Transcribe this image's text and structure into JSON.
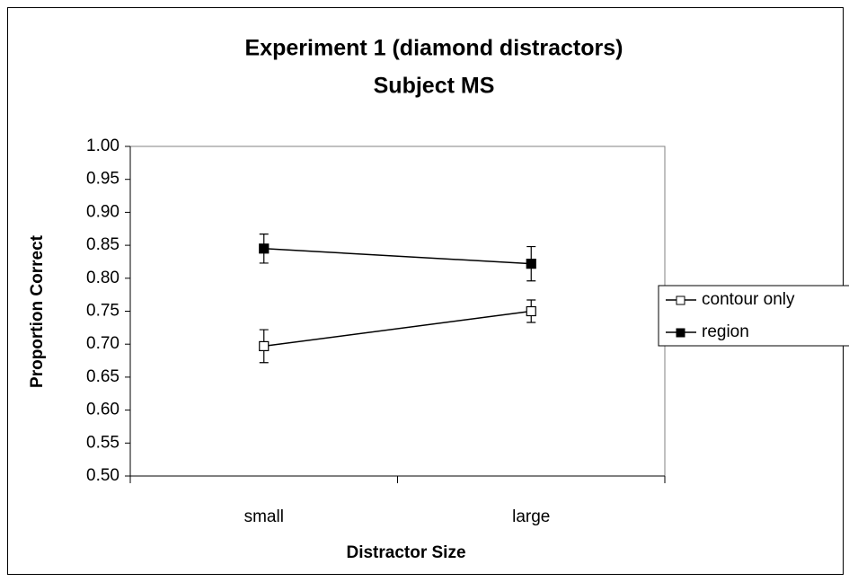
{
  "chart_data": {
    "type": "line",
    "title": "Experiment 1 (diamond distractors)",
    "subtitle": "Subject MS",
    "xlabel": "Distractor Size",
    "ylabel": "Proportion Correct",
    "categories": [
      "small",
      "large"
    ],
    "series": [
      {
        "name": "contour only",
        "color": "#000000",
        "marker": "open-square",
        "values": [
          0.697,
          0.75
        ],
        "errors": [
          0.025,
          0.017
        ]
      },
      {
        "name": "region",
        "color": "#000000",
        "marker": "filled-square",
        "values": [
          0.845,
          0.822
        ],
        "errors": [
          0.022,
          0.026
        ]
      }
    ],
    "ylim": [
      0.5,
      1.0
    ],
    "yticks": [
      {
        "value": 0.5,
        "label": "0.50"
      },
      {
        "value": 0.55,
        "label": "0.55"
      },
      {
        "value": 0.6,
        "label": "0.60"
      },
      {
        "value": 0.65,
        "label": "0.65"
      },
      {
        "value": 0.7,
        "label": "0.70"
      },
      {
        "value": 0.75,
        "label": "0.75"
      },
      {
        "value": 0.8,
        "label": "0.80"
      },
      {
        "value": 0.85,
        "label": "0.85"
      },
      {
        "value": 0.9,
        "label": "0.90"
      },
      {
        "value": 0.95,
        "label": "0.95"
      },
      {
        "value": 1.0,
        "label": "1.00"
      }
    ],
    "grid": false,
    "legend": "right"
  }
}
